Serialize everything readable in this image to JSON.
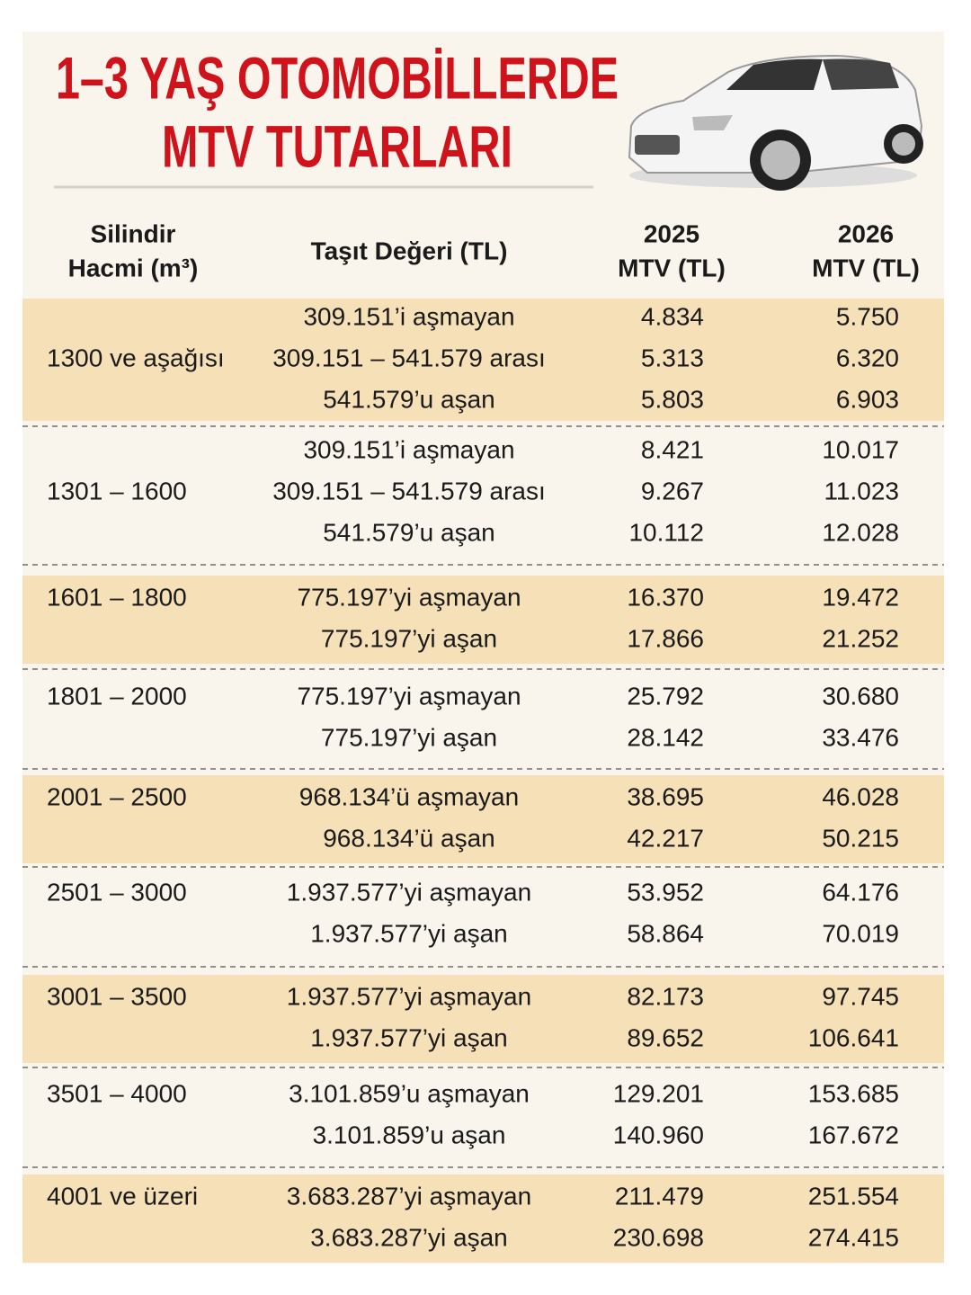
{
  "title": [
    "1–3 YAŞ OTOMOBİLLERDE",
    "MTV TUTARLARI"
  ],
  "header": {
    "cylinder": [
      "Silindir",
      "Hacmi (m³)"
    ],
    "value": [
      "Taşıt Değeri (TL)"
    ],
    "mtv_2025": [
      "2025",
      "MTV (TL)"
    ],
    "mtv_2026": [
      "2026",
      "MTV (TL)"
    ]
  },
  "groups": [
    {
      "range": "1300 ve aşağısı",
      "rows": [
        [
          "309.151’i aşmayan",
          "4.834",
          "5.750"
        ],
        [
          "309.151 – 541.579 arası",
          "5.313",
          "6.320"
        ],
        [
          "541.579’u aşan",
          "5.803",
          "6.903"
        ]
      ]
    },
    {
      "range": "1301 – 1600",
      "rows": [
        [
          "309.151’i aşmayan",
          "8.421",
          "10.017"
        ],
        [
          "309.151 – 541.579 arası",
          "9.267",
          "11.023"
        ],
        [
          "541.579’u aşan",
          "10.112",
          "12.028"
        ]
      ]
    },
    {
      "range": "1601 – 1800",
      "rows": [
        [
          "775.197’yi aşmayan",
          "16.370",
          "19.472"
        ],
        [
          "775.197’yi aşan",
          "17.866",
          "21.252"
        ]
      ]
    },
    {
      "range": "1801 – 2000",
      "rows": [
        [
          "775.197’yi aşmayan",
          "25.792",
          "30.680"
        ],
        [
          "775.197’yi aşan",
          "28.142",
          "33.476"
        ]
      ]
    },
    {
      "range": "2001 – 2500",
      "rows": [
        [
          "968.134’ü aşmayan",
          "38.695",
          "46.028"
        ],
        [
          "968.134’ü aşan",
          "42.217",
          "50.215"
        ]
      ]
    },
    {
      "range": "2501 – 3000",
      "rows": [
        [
          "1.937.577’yi aşmayan",
          "53.952",
          "64.176"
        ],
        [
          "1.937.577’yi aşan",
          "58.864",
          "70.019"
        ]
      ]
    },
    {
      "range": "3001 – 3500",
      "rows": [
        [
          "1.937.577’yi aşmayan",
          "82.173",
          "97.745"
        ],
        [
          "1.937.577’yi aşan",
          "89.652",
          "106.641"
        ]
      ]
    },
    {
      "range": "3501 – 4000",
      "rows": [
        [
          "3.101.859’u aşmayan",
          "129.201",
          "153.685"
        ],
        [
          "3.101.859’u aşan",
          "140.960",
          "167.672"
        ]
      ]
    },
    {
      "range": "4001 ve üzeri",
      "rows": [
        [
          "3.683.287’yi aşmayan",
          "211.479",
          "251.554"
        ],
        [
          "3.683.287’yi aşan",
          "230.698",
          "274.415"
        ]
      ]
    }
  ]
}
